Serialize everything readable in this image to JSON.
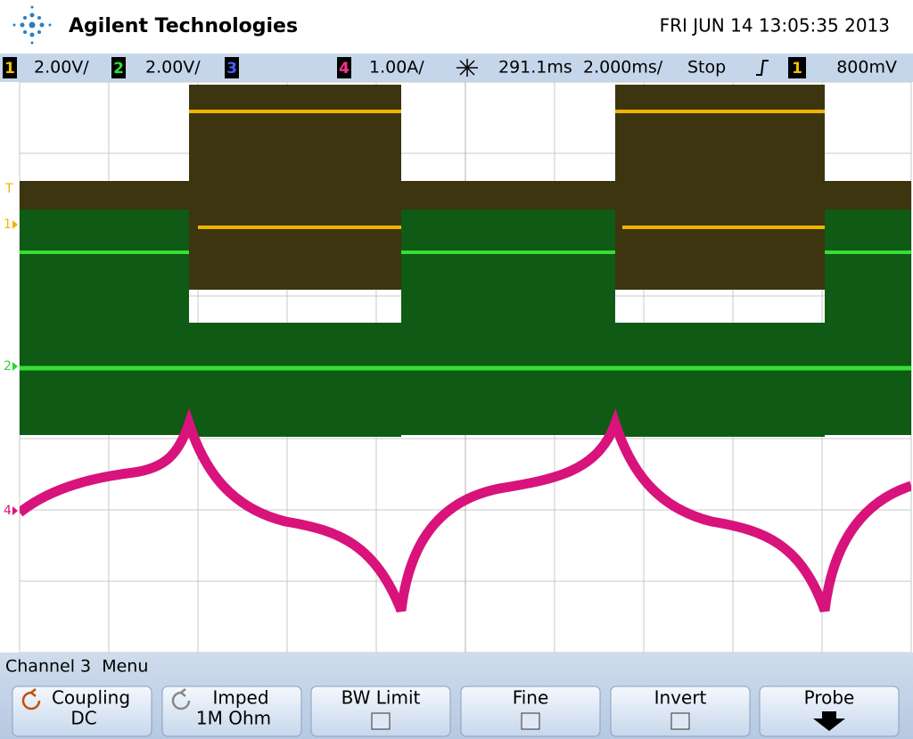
{
  "header": {
    "brand": "Agilent Technologies",
    "datetime": "FRI JUN 14 13:05:35 2013"
  },
  "status_bar": {
    "ch1_label": "1",
    "ch1_scale": "2.00V/",
    "ch2_label": "2",
    "ch2_scale": "2.00V/",
    "ch3_label": "3",
    "ch4_label": "4",
    "ch4_scale": "1.00A/",
    "delay": "291.1ms",
    "timebase": "2.000ms/",
    "run_state": "Stop",
    "trigger_source": "1",
    "trigger_level": "800mV"
  },
  "markers": {
    "trigger": "T",
    "ch1": "1",
    "ch2": "2",
    "ch4": "4"
  },
  "menu": {
    "title": "Channel 3  Menu",
    "softkeys": [
      {
        "label": "Coupling",
        "value": "DC"
      },
      {
        "label": "Imped",
        "value": "1M Ohm"
      },
      {
        "label": "BW Limit"
      },
      {
        "label": "Fine"
      },
      {
        "label": "Invert"
      },
      {
        "label": "Probe"
      }
    ]
  }
}
